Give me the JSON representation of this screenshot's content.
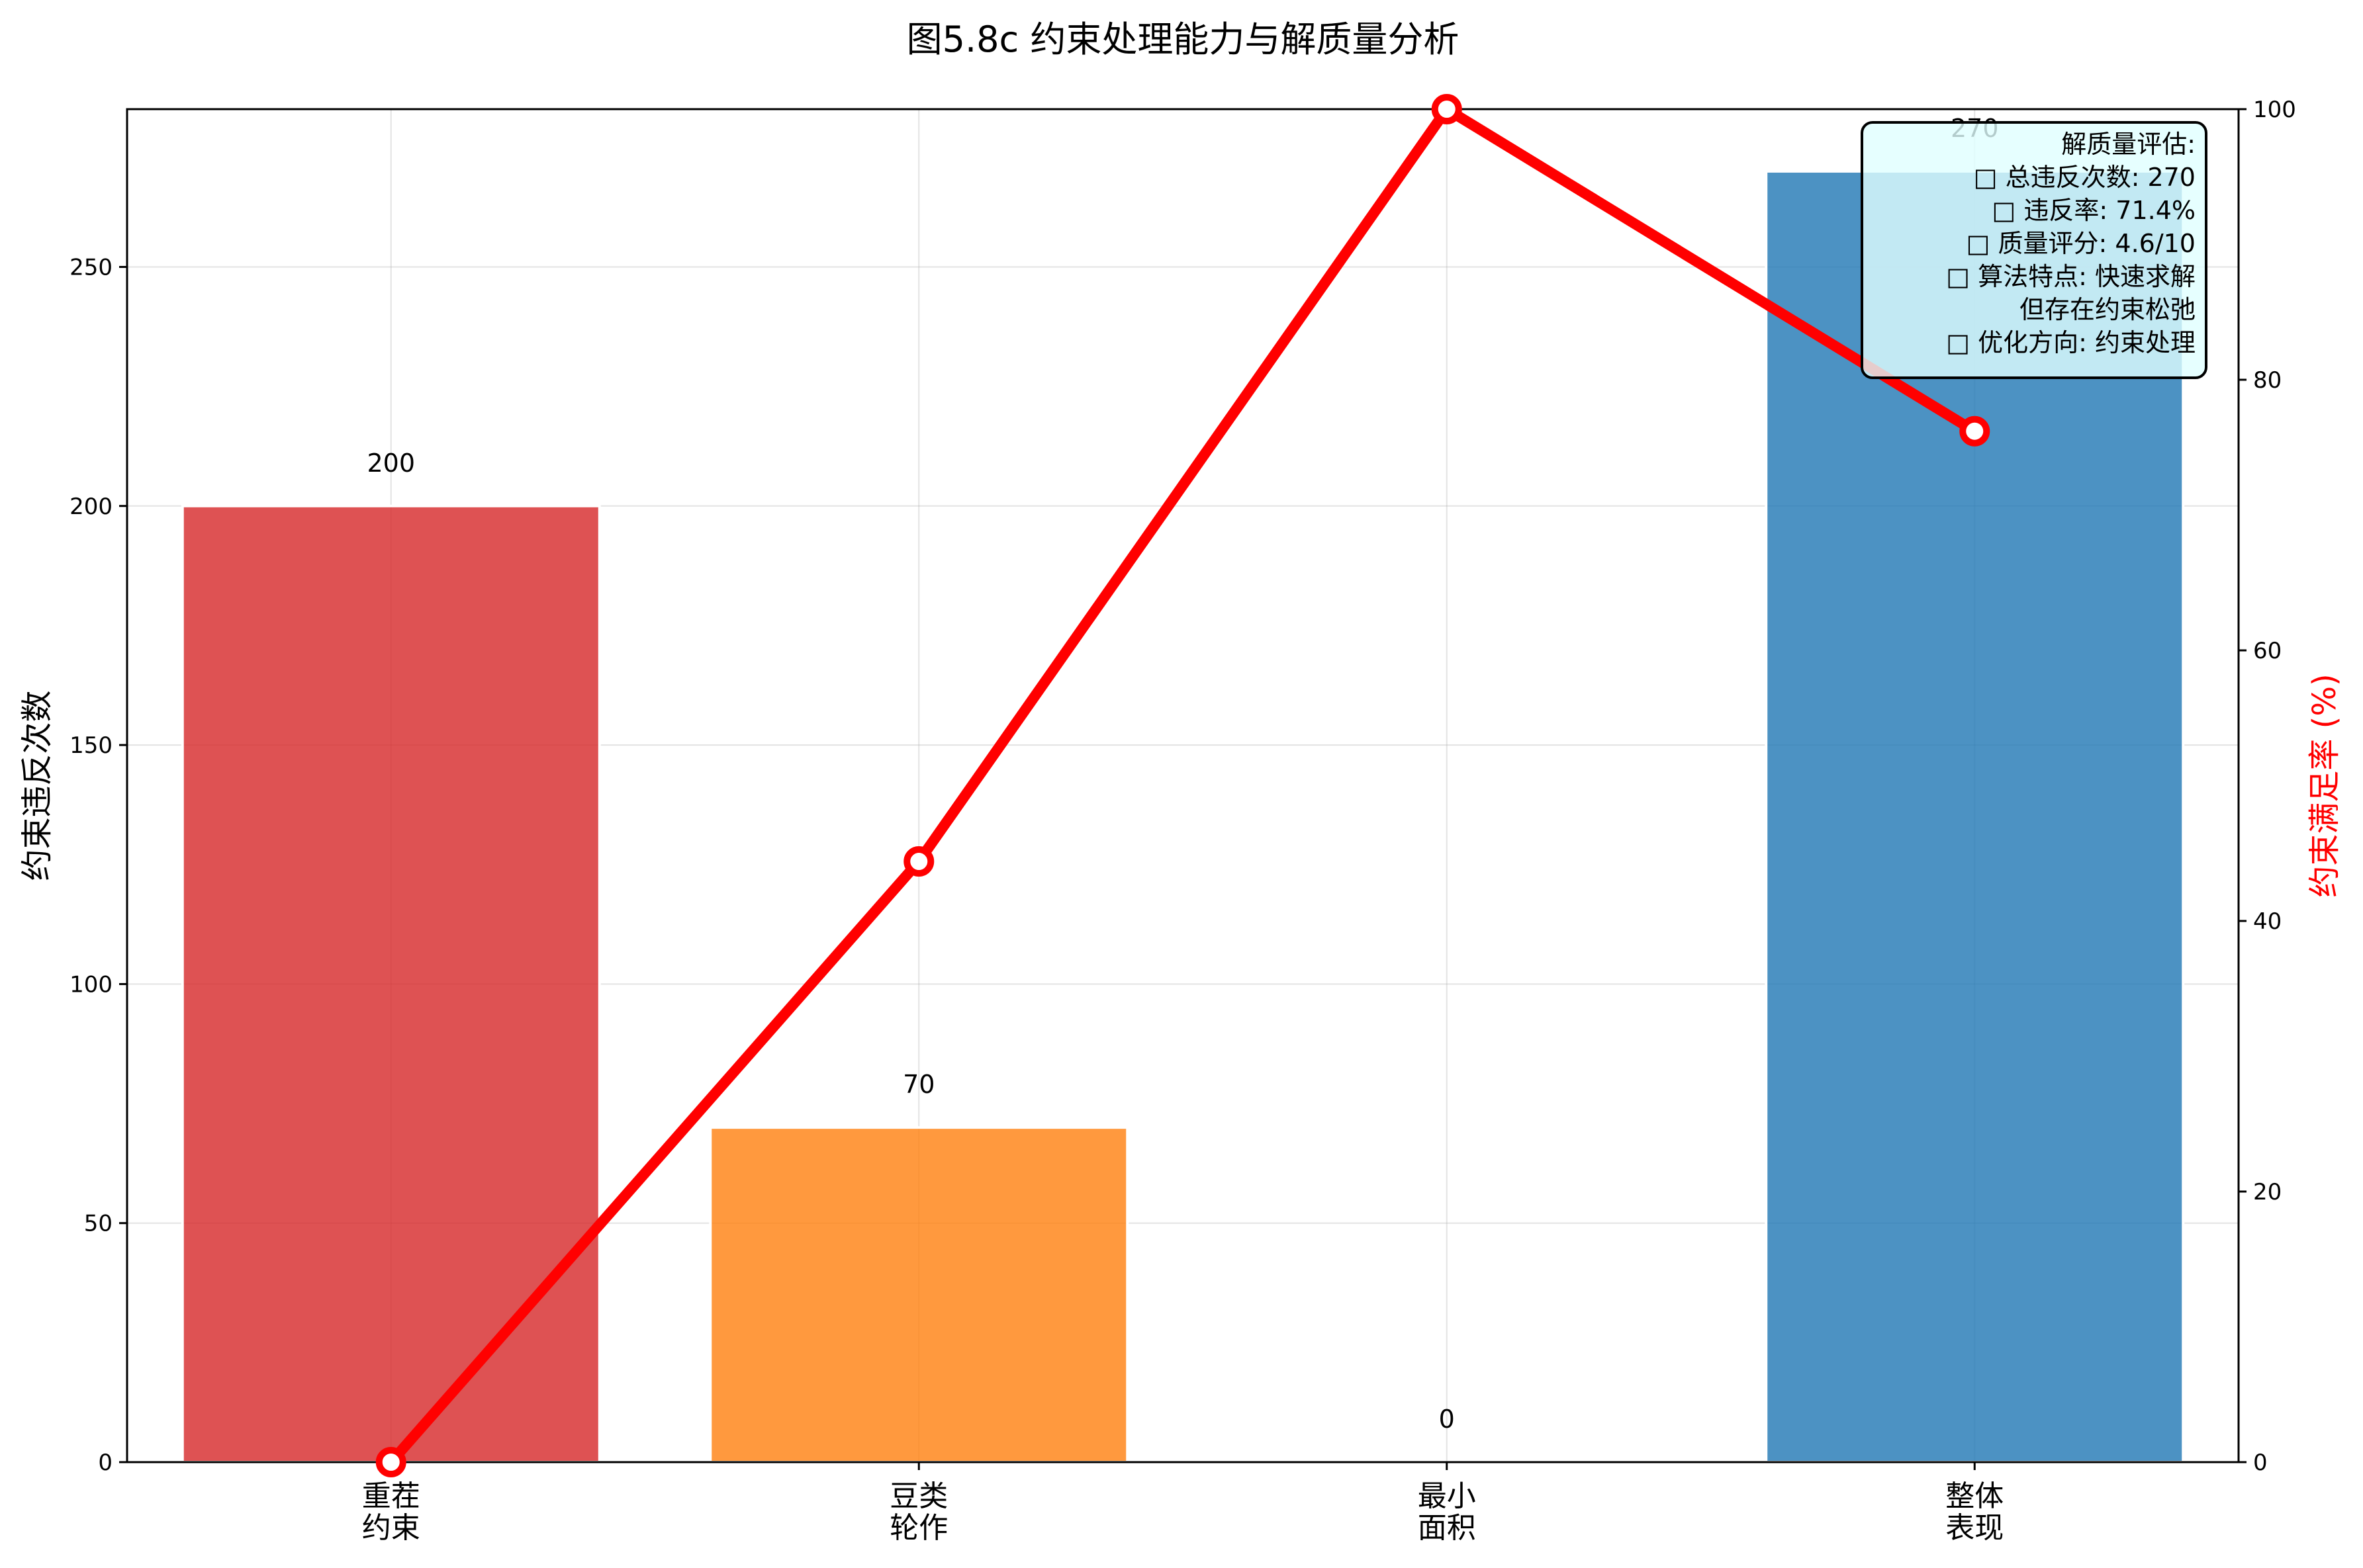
{
  "chart_data": {
    "type": "bar",
    "title": "图5.8c 约束处理能力与解质量分析",
    "categories": [
      [
        "重茬",
        "约束"
      ],
      [
        "豆类",
        "轮作"
      ],
      [
        "最小",
        "面积"
      ],
      [
        "整体",
        "表现"
      ]
    ],
    "ylabel": "约束违反次数",
    "ylim": [
      0,
      283
    ],
    "yticks": [
      0,
      50,
      100,
      150,
      200,
      250
    ],
    "y2label": "约束满足率 (%)",
    "y2lim": [
      0,
      100
    ],
    "y2ticks": [
      0,
      20,
      40,
      60,
      80,
      100
    ],
    "grid": true,
    "series": [
      {
        "kind": "bar",
        "axis": "left",
        "values": [
          200,
          70,
          0,
          270
        ],
        "data_labels": [
          "200",
          "70",
          "0",
          "270"
        ],
        "colors": [
          "#d62728",
          "#ff7f0e",
          "#2ca02c",
          "#1f77b4"
        ]
      },
      {
        "kind": "line",
        "axis": "right",
        "values": [
          0,
          44.4,
          100,
          76.2
        ],
        "color": "#ff0000",
        "marker": "circle"
      }
    ],
    "annotation": {
      "position": "top-right",
      "lines": [
        "解质量评估:",
        "□ 总违反次数: 270",
        "□ 违反率: 71.4%",
        "□ 质量评分: 4.6/10",
        "□ 算法特点: 快速求解",
        "但存在约束松弛",
        "□ 优化方向: 约束处理"
      ],
      "background": "#e0ffff"
    }
  }
}
